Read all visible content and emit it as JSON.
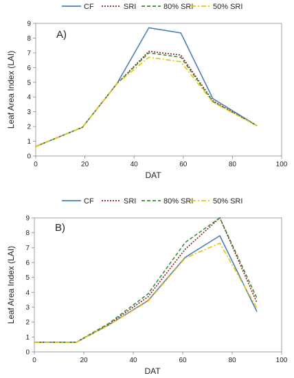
{
  "chart_data": [
    {
      "type": "line",
      "panel_label": "A)",
      "xlabel": "DAT",
      "ylabel": "Leaf Area Index (LAI)",
      "xlim": [
        0,
        100
      ],
      "ylim": [
        0,
        9
      ],
      "xticks": [
        0,
        20,
        40,
        60,
        80,
        100
      ],
      "yticks": [
        0,
        1,
        2,
        3,
        4,
        5,
        6,
        7,
        8,
        9
      ],
      "x": [
        0,
        19,
        33,
        46,
        59,
        72,
        90
      ],
      "series": [
        {
          "name": "CF",
          "color": "#4a7ebb",
          "dash": "solid",
          "values": [
            0.65,
            1.95,
            4.9,
            8.7,
            8.35,
            3.9,
            2.05
          ]
        },
        {
          "name": "SRI",
          "color": "#8b1a1a",
          "dash": "dotted",
          "values": [
            0.65,
            1.95,
            4.9,
            7.1,
            6.85,
            3.75,
            2.05
          ]
        },
        {
          "name": "80% SRI",
          "color": "#3a8a3a",
          "dash": "dashed",
          "values": [
            0.65,
            1.95,
            4.9,
            7.0,
            6.7,
            3.7,
            2.05
          ]
        },
        {
          "name": "50% SRI",
          "color": "#e8c400",
          "dash": "dashdot",
          "values": [
            0.65,
            1.95,
            4.9,
            6.7,
            6.4,
            3.65,
            2.05
          ]
        }
      ],
      "legend": "top"
    },
    {
      "type": "line",
      "panel_label": "B)",
      "xlabel": "DAT",
      "ylabel": "Leaf Area Index (LAI)",
      "xlim": [
        0,
        100
      ],
      "ylim": [
        0,
        9
      ],
      "xticks": [
        0,
        20,
        40,
        60,
        80,
        100
      ],
      "yticks": [
        0,
        1,
        2,
        3,
        4,
        5,
        6,
        7,
        8,
        9
      ],
      "x": [
        0,
        17,
        30,
        46,
        61,
        75,
        90
      ],
      "series": [
        {
          "name": "CF",
          "color": "#4a7ebb",
          "dash": "solid",
          "values": [
            0.65,
            0.65,
            1.8,
            3.45,
            6.35,
            7.8,
            2.7
          ]
        },
        {
          "name": "SRI",
          "color": "#8b1a1a",
          "dash": "dotted",
          "values": [
            0.65,
            0.65,
            1.85,
            3.7,
            6.9,
            9.0,
            3.3
          ]
        },
        {
          "name": "80% SRI",
          "color": "#3a8a3a",
          "dash": "dashed",
          "values": [
            0.65,
            0.65,
            1.9,
            3.9,
            7.35,
            9.0,
            3.6
          ]
        },
        {
          "name": "50% SRI",
          "color": "#e8c400",
          "dash": "dashdot",
          "values": [
            0.65,
            0.65,
            1.8,
            3.4,
            6.3,
            7.3,
            2.95
          ]
        }
      ],
      "legend": "top"
    }
  ]
}
